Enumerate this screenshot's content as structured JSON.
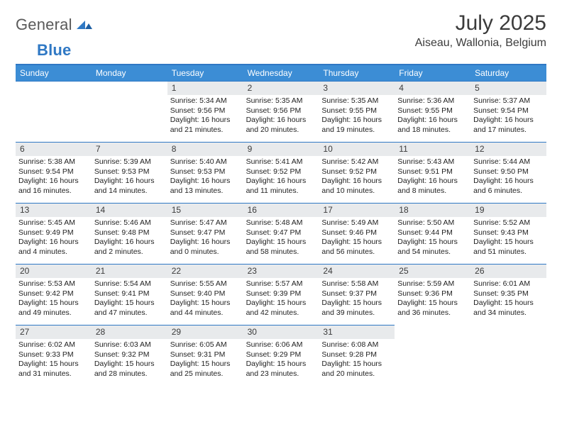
{
  "brand": {
    "word1": "General",
    "word2": "Blue"
  },
  "title": "July 2025",
  "location": "Aiseau, Wallonia, Belgium",
  "colors": {
    "accent": "#2f78c4",
    "header_bg": "#3c8dd5",
    "daynum_bg": "#e8eaec",
    "text": "#222222"
  },
  "dow": [
    "Sunday",
    "Monday",
    "Tuesday",
    "Wednesday",
    "Thursday",
    "Friday",
    "Saturday"
  ],
  "leading_blanks": 2,
  "days": [
    {
      "n": 1,
      "sunrise": "5:34 AM",
      "sunset": "9:56 PM",
      "daylight": "16 hours and 21 minutes."
    },
    {
      "n": 2,
      "sunrise": "5:35 AM",
      "sunset": "9:56 PM",
      "daylight": "16 hours and 20 minutes."
    },
    {
      "n": 3,
      "sunrise": "5:35 AM",
      "sunset": "9:55 PM",
      "daylight": "16 hours and 19 minutes."
    },
    {
      "n": 4,
      "sunrise": "5:36 AM",
      "sunset": "9:55 PM",
      "daylight": "16 hours and 18 minutes."
    },
    {
      "n": 5,
      "sunrise": "5:37 AM",
      "sunset": "9:54 PM",
      "daylight": "16 hours and 17 minutes."
    },
    {
      "n": 6,
      "sunrise": "5:38 AM",
      "sunset": "9:54 PM",
      "daylight": "16 hours and 16 minutes."
    },
    {
      "n": 7,
      "sunrise": "5:39 AM",
      "sunset": "9:53 PM",
      "daylight": "16 hours and 14 minutes."
    },
    {
      "n": 8,
      "sunrise": "5:40 AM",
      "sunset": "9:53 PM",
      "daylight": "16 hours and 13 minutes."
    },
    {
      "n": 9,
      "sunrise": "5:41 AM",
      "sunset": "9:52 PM",
      "daylight": "16 hours and 11 minutes."
    },
    {
      "n": 10,
      "sunrise": "5:42 AM",
      "sunset": "9:52 PM",
      "daylight": "16 hours and 10 minutes."
    },
    {
      "n": 11,
      "sunrise": "5:43 AM",
      "sunset": "9:51 PM",
      "daylight": "16 hours and 8 minutes."
    },
    {
      "n": 12,
      "sunrise": "5:44 AM",
      "sunset": "9:50 PM",
      "daylight": "16 hours and 6 minutes."
    },
    {
      "n": 13,
      "sunrise": "5:45 AM",
      "sunset": "9:49 PM",
      "daylight": "16 hours and 4 minutes."
    },
    {
      "n": 14,
      "sunrise": "5:46 AM",
      "sunset": "9:48 PM",
      "daylight": "16 hours and 2 minutes."
    },
    {
      "n": 15,
      "sunrise": "5:47 AM",
      "sunset": "9:47 PM",
      "daylight": "16 hours and 0 minutes."
    },
    {
      "n": 16,
      "sunrise": "5:48 AM",
      "sunset": "9:47 PM",
      "daylight": "15 hours and 58 minutes."
    },
    {
      "n": 17,
      "sunrise": "5:49 AM",
      "sunset": "9:46 PM",
      "daylight": "15 hours and 56 minutes."
    },
    {
      "n": 18,
      "sunrise": "5:50 AM",
      "sunset": "9:44 PM",
      "daylight": "15 hours and 54 minutes."
    },
    {
      "n": 19,
      "sunrise": "5:52 AM",
      "sunset": "9:43 PM",
      "daylight": "15 hours and 51 minutes."
    },
    {
      "n": 20,
      "sunrise": "5:53 AM",
      "sunset": "9:42 PM",
      "daylight": "15 hours and 49 minutes."
    },
    {
      "n": 21,
      "sunrise": "5:54 AM",
      "sunset": "9:41 PM",
      "daylight": "15 hours and 47 minutes."
    },
    {
      "n": 22,
      "sunrise": "5:55 AM",
      "sunset": "9:40 PM",
      "daylight": "15 hours and 44 minutes."
    },
    {
      "n": 23,
      "sunrise": "5:57 AM",
      "sunset": "9:39 PM",
      "daylight": "15 hours and 42 minutes."
    },
    {
      "n": 24,
      "sunrise": "5:58 AM",
      "sunset": "9:37 PM",
      "daylight": "15 hours and 39 minutes."
    },
    {
      "n": 25,
      "sunrise": "5:59 AM",
      "sunset": "9:36 PM",
      "daylight": "15 hours and 36 minutes."
    },
    {
      "n": 26,
      "sunrise": "6:01 AM",
      "sunset": "9:35 PM",
      "daylight": "15 hours and 34 minutes."
    },
    {
      "n": 27,
      "sunrise": "6:02 AM",
      "sunset": "9:33 PM",
      "daylight": "15 hours and 31 minutes."
    },
    {
      "n": 28,
      "sunrise": "6:03 AM",
      "sunset": "9:32 PM",
      "daylight": "15 hours and 28 minutes."
    },
    {
      "n": 29,
      "sunrise": "6:05 AM",
      "sunset": "9:31 PM",
      "daylight": "15 hours and 25 minutes."
    },
    {
      "n": 30,
      "sunrise": "6:06 AM",
      "sunset": "9:29 PM",
      "daylight": "15 hours and 23 minutes."
    },
    {
      "n": 31,
      "sunrise": "6:08 AM",
      "sunset": "9:28 PM",
      "daylight": "15 hours and 20 minutes."
    }
  ],
  "labels": {
    "sunrise": "Sunrise:",
    "sunset": "Sunset:",
    "daylight": "Daylight:"
  }
}
